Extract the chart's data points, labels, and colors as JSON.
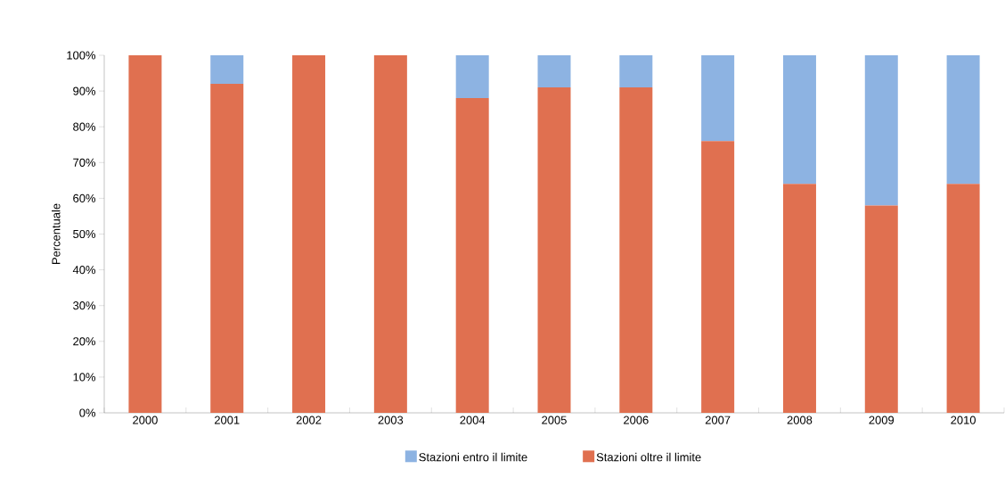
{
  "chart_data": {
    "type": "bar",
    "stacked": true,
    "ylabel": "Percentuale",
    "categories": [
      "2000",
      "2001",
      "2002",
      "2003",
      "2004",
      "2005",
      "2006",
      "2007",
      "2008",
      "2009",
      "2010"
    ],
    "series": [
      {
        "name": "Stazioni oltre il limite",
        "color": "#e07050",
        "values": [
          100,
          92,
          100,
          100,
          88,
          91,
          91,
          76,
          64,
          58,
          64
        ]
      },
      {
        "name": "Stazioni entro il limite",
        "color": "#8db3e2",
        "values": [
          0,
          8,
          0,
          0,
          12,
          9,
          9,
          24,
          36,
          42,
          36
        ]
      }
    ],
    "ylim": [
      0,
      100
    ],
    "yticks": [
      {
        "value": 0,
        "label": "0%"
      },
      {
        "value": 10,
        "label": "10%"
      },
      {
        "value": 20,
        "label": "20%"
      },
      {
        "value": 30,
        "label": "30%"
      },
      {
        "value": 40,
        "label": "40%"
      },
      {
        "value": 50,
        "label": "50%"
      },
      {
        "value": 60,
        "label": "60%"
      },
      {
        "value": 70,
        "label": "70%"
      },
      {
        "value": 80,
        "label": "80%"
      },
      {
        "value": 90,
        "label": "90%"
      },
      {
        "value": 100,
        "label": "100%"
      }
    ],
    "grid": false,
    "legend": "bottom"
  }
}
